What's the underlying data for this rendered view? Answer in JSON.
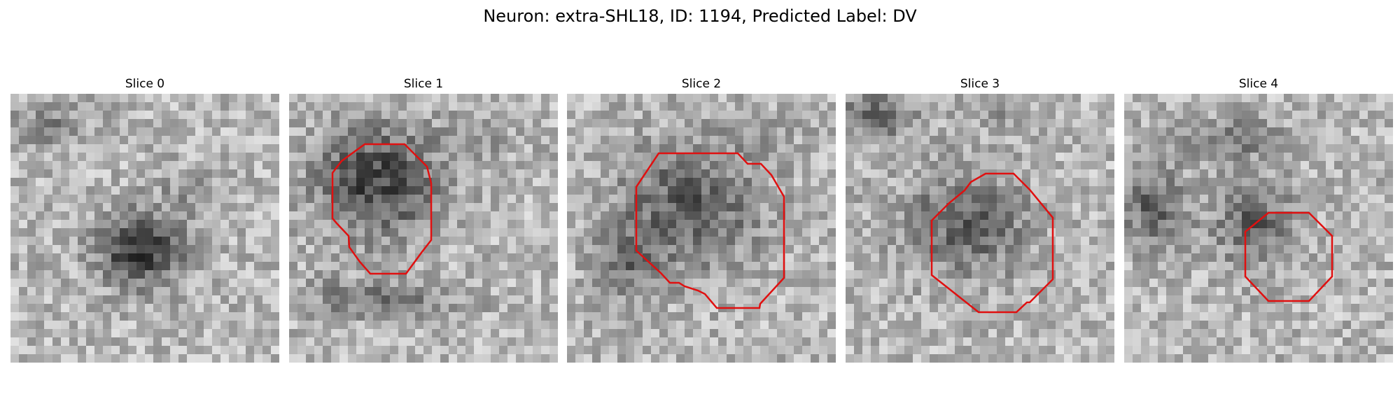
{
  "figure": {
    "title": "Neuron: extra-SHL18, ID: 1194, Predicted Label: DV",
    "outline_color": "#e01010",
    "colormap": "gray"
  },
  "slices": [
    {
      "title": "Slice 0",
      "has_outline": false
    },
    {
      "title": "Slice 1",
      "has_outline": true
    },
    {
      "title": "Slice 2",
      "has_outline": true
    },
    {
      "title": "Slice 3",
      "has_outline": true
    },
    {
      "title": "Slice 4",
      "has_outline": true
    }
  ]
}
